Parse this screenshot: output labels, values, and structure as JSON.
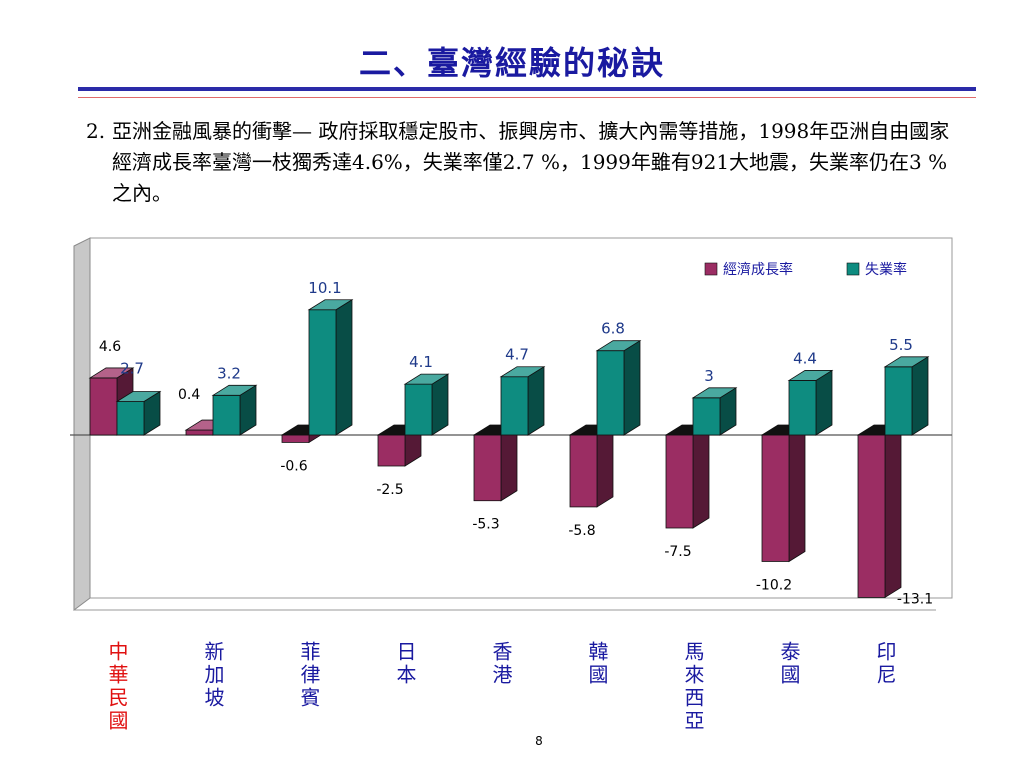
{
  "slide": {
    "title": "二、臺灣經驗的秘訣",
    "bullet_number": "2.",
    "bullet_text": "亞洲金融風暴的衝擊— 政府採取穩定股市、振興房市、擴大內需等措施，1998年亞洲自由國家經濟成長率臺灣一枝獨秀達4.6%，失業率僅2.7 %，1999年雖有921大地震，失業率仍在3 % 之內。",
    "page_number": "8"
  },
  "chart_data": {
    "type": "bar",
    "categories": [
      "中華民國",
      "新加坡",
      "菲律賓",
      "日本",
      "香港",
      "韓國",
      "馬來西亞",
      "泰國",
      "印尼"
    ],
    "series": [
      {
        "name": "經濟成長率",
        "values": [
          4.6,
          0.4,
          -0.6,
          -2.5,
          -5.3,
          -5.8,
          -7.5,
          -10.2,
          -13.1
        ],
        "color": "#9b2d63"
      },
      {
        "name": "失業率",
        "values": [
          2.7,
          3.2,
          10.1,
          4.1,
          4.7,
          6.8,
          3,
          4.4,
          5.5
        ],
        "color": "#0e8c80"
      }
    ],
    "data_labels": [
      [
        "4.6",
        "0.4",
        "-0.6",
        "-2.5",
        "-5.3",
        "-5.8",
        "-7.5",
        "-10.2",
        "-13.1"
      ],
      [
        "2.7",
        "3.2",
        "10.1",
        "4.1",
        "4.7",
        "6.8",
        "3",
        "4.4",
        "5.5"
      ]
    ],
    "highlight_category_color": "#e01010",
    "category_color": "#1a1aa0",
    "legend_position": "top-right",
    "grid": false,
    "ylim": [
      -13.1,
      10.1
    ]
  }
}
